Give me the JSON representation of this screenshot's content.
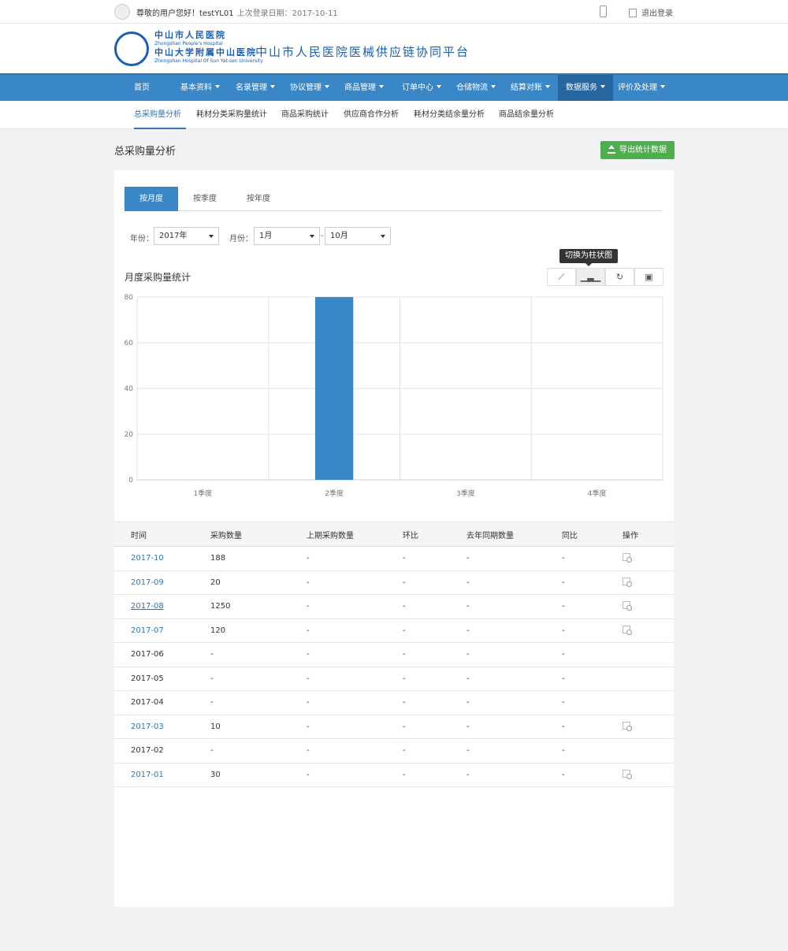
{
  "topbar": {
    "greeting": "尊敬的用户您好！testYL01",
    "last_login": "上次登录日期：2017-10-11",
    "logout": "退出登录"
  },
  "header": {
    "logo_cn1": "中山市人民医院",
    "logo_en1": "Zhongshan People's Hospital",
    "logo_cn2": "中山大学附属中山医院",
    "logo_en2": "Zhongshan Hospital Of Sun Yat-sen University",
    "site_title": "中山市人民医院医械供应链协同平台"
  },
  "nav": [
    {
      "label": "首页",
      "dropdown": false
    },
    {
      "label": "基本资料",
      "dropdown": true
    },
    {
      "label": "名录管理",
      "dropdown": true
    },
    {
      "label": "协议管理",
      "dropdown": true
    },
    {
      "label": "商品管理",
      "dropdown": true
    },
    {
      "label": "订单中心",
      "dropdown": true
    },
    {
      "label": "仓储物流",
      "dropdown": true
    },
    {
      "label": "结算对账",
      "dropdown": true
    },
    {
      "label": "数据服务",
      "dropdown": true,
      "active": true
    },
    {
      "label": "评价及处理",
      "dropdown": true
    }
  ],
  "subnav": [
    {
      "label": "总采购量分析",
      "active": true
    },
    {
      "label": "耗材分类采购量统计"
    },
    {
      "label": "商品采购统计"
    },
    {
      "label": "供应商合作分析"
    },
    {
      "label": "耗材分类结余量分析"
    },
    {
      "label": "商品结余量分析"
    }
  ],
  "page": {
    "title": "总采购量分析",
    "export_label": "导出统计数据"
  },
  "tabs": [
    {
      "label": "按月度",
      "active": true
    },
    {
      "label": "按季度"
    },
    {
      "label": "按年度"
    }
  ],
  "filters": {
    "year_label": "年份：",
    "year": "2017年",
    "month_label": "月份：",
    "month_from": "1月",
    "separator": "-",
    "month_to": "10月"
  },
  "chart_header": {
    "title": "月度采购量统计",
    "tooltip": "切换为柱状图",
    "tools": [
      "line-chart-icon",
      "bar-chart-icon",
      "refresh-icon",
      "save-icon"
    ]
  },
  "chart_data": {
    "type": "bar",
    "categories": [
      "1季度",
      "2季度",
      "3季度",
      "4季度"
    ],
    "values": [
      0,
      80,
      0,
      0
    ],
    "ylim": [
      0,
      80
    ],
    "yticks": [
      "0",
      "20",
      "40",
      "60",
      "80"
    ],
    "grid": true,
    "color": "#3a87c8"
  },
  "table": {
    "headers": [
      "时间",
      "采购数量",
      "上期采购数量",
      "环比",
      "去年同期数量",
      "同比",
      "操作"
    ],
    "rows": [
      {
        "cells": [
          "2017-10",
          "188",
          "-",
          "-",
          "-",
          "-"
        ],
        "link": true,
        "action": true
      },
      {
        "cells": [
          "2017-09",
          "20",
          "-",
          "-",
          "-",
          "-"
        ],
        "link": true,
        "action": true
      },
      {
        "cells": [
          "2017-08",
          "1250",
          "-",
          "-",
          "-",
          "-"
        ],
        "link": true,
        "underline": true,
        "action": true
      },
      {
        "cells": [
          "2017-07",
          "120",
          "-",
          "-",
          "-",
          "-"
        ],
        "link": true,
        "action": true
      },
      {
        "cells": [
          "2017-06",
          "-",
          "-",
          "-",
          "-",
          "-"
        ]
      },
      {
        "cells": [
          "2017-05",
          "-",
          "-",
          "-",
          "-",
          "-"
        ]
      },
      {
        "cells": [
          "2017-04",
          "-",
          "-",
          "-",
          "-",
          "-"
        ]
      },
      {
        "cells": [
          "2017-03",
          "10",
          "-",
          "-",
          "-",
          "-"
        ],
        "link": true,
        "action": true
      },
      {
        "cells": [
          "2017-02",
          "-",
          "-",
          "-",
          "-",
          "-"
        ]
      },
      {
        "cells": [
          "2017-01",
          "30",
          "-",
          "-",
          "-",
          "-"
        ],
        "link": true,
        "action": true
      }
    ]
  },
  "colors": {
    "primary": "#3a87c8",
    "nav_active": "#25669f",
    "export": "#4cae4c",
    "link": "#2e76b6"
  }
}
